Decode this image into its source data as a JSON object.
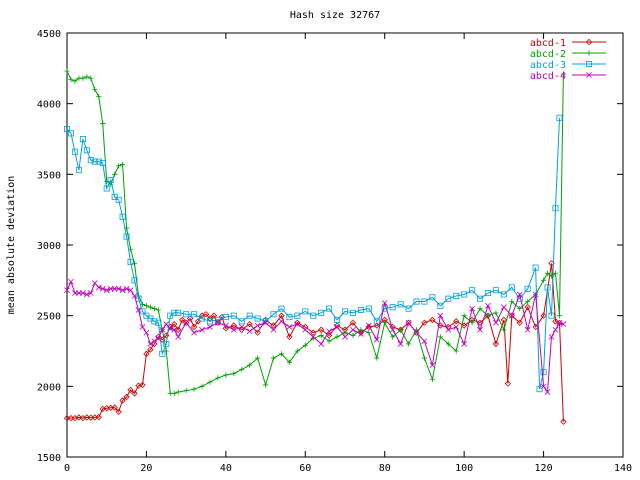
{
  "chart_data": {
    "type": "line",
    "title": "Hash size 32767",
    "xlabel": "",
    "ylabel": "mean absolute deviation",
    "xlim": [
      0,
      140
    ],
    "ylim": [
      1500,
      4500
    ],
    "xticks": [
      "0",
      "20",
      "40",
      "60",
      "80",
      "100",
      "120",
      "140"
    ],
    "yticks": [
      "1500",
      "2000",
      "2500",
      "3000",
      "3500",
      "4000",
      "4500"
    ],
    "legend_position": "top-right",
    "grid": false,
    "series": [
      {
        "name": "abcd-1",
        "color": "#d00000",
        "marker": "diamond",
        "points": [
          [
            0,
            1775
          ],
          [
            1,
            1775
          ],
          [
            2,
            1775
          ],
          [
            3,
            1780
          ],
          [
            4,
            1775
          ],
          [
            5,
            1780
          ],
          [
            6,
            1778
          ],
          [
            7,
            1780
          ],
          [
            8,
            1782
          ],
          [
            9,
            1840
          ],
          [
            10,
            1845
          ],
          [
            11,
            1848
          ],
          [
            12,
            1850
          ],
          [
            13,
            1820
          ],
          [
            14,
            1900
          ],
          [
            15,
            1925
          ],
          [
            16,
            1975
          ],
          [
            17,
            1950
          ],
          [
            18,
            2005
          ],
          [
            19,
            2010
          ],
          [
            20,
            2230
          ],
          [
            21,
            2260
          ],
          [
            22,
            2300
          ],
          [
            23,
            2350
          ],
          [
            24,
            2330
          ],
          [
            25,
            2360
          ],
          [
            26,
            2420
          ],
          [
            27,
            2440
          ],
          [
            28,
            2400
          ],
          [
            29,
            2470
          ],
          [
            30,
            2450
          ],
          [
            31,
            2480
          ],
          [
            32,
            2420
          ],
          [
            33,
            2460
          ],
          [
            34,
            2500
          ],
          [
            35,
            2510
          ],
          [
            36,
            2480
          ],
          [
            37,
            2500
          ],
          [
            38,
            2450
          ],
          [
            39,
            2490
          ],
          [
            40,
            2410
          ],
          [
            42,
            2430
          ],
          [
            44,
            2400
          ],
          [
            46,
            2440
          ],
          [
            48,
            2380
          ],
          [
            50,
            2470
          ],
          [
            52,
            2430
          ],
          [
            54,
            2500
          ],
          [
            56,
            2350
          ],
          [
            58,
            2450
          ],
          [
            60,
            2420
          ],
          [
            62,
            2380
          ],
          [
            64,
            2400
          ],
          [
            66,
            2360
          ],
          [
            68,
            2430
          ],
          [
            70,
            2400
          ],
          [
            72,
            2450
          ],
          [
            74,
            2380
          ],
          [
            76,
            2420
          ],
          [
            78,
            2430
          ],
          [
            80,
            2470
          ],
          [
            82,
            2420
          ],
          [
            84,
            2400
          ],
          [
            86,
            2450
          ],
          [
            88,
            2380
          ],
          [
            90,
            2450
          ],
          [
            92,
            2470
          ],
          [
            94,
            2430
          ],
          [
            96,
            2420
          ],
          [
            98,
            2460
          ],
          [
            100,
            2430
          ],
          [
            102,
            2470
          ],
          [
            104,
            2450
          ],
          [
            106,
            2500
          ],
          [
            108,
            2300
          ],
          [
            110,
            2470
          ],
          [
            111,
            2020
          ],
          [
            112,
            2500
          ],
          [
            114,
            2450
          ],
          [
            116,
            2560
          ],
          [
            118,
            2420
          ],
          [
            120,
            2500
          ],
          [
            122,
            2870
          ],
          [
            123,
            2460
          ],
          [
            124,
            2450
          ],
          [
            125,
            1750
          ]
        ]
      },
      {
        "name": "abcd-2",
        "color": "#00a000",
        "marker": "plus",
        "points": [
          [
            0,
            4230
          ],
          [
            1,
            4170
          ],
          [
            2,
            4160
          ],
          [
            3,
            4180
          ],
          [
            4,
            4180
          ],
          [
            5,
            4190
          ],
          [
            6,
            4180
          ],
          [
            7,
            4100
          ],
          [
            8,
            4050
          ],
          [
            9,
            3860
          ],
          [
            10,
            3450
          ],
          [
            11,
            3430
          ],
          [
            12,
            3500
          ],
          [
            13,
            3560
          ],
          [
            14,
            3570
          ],
          [
            15,
            3120
          ],
          [
            16,
            2970
          ],
          [
            17,
            2870
          ],
          [
            18,
            2640
          ],
          [
            19,
            2580
          ],
          [
            20,
            2570
          ],
          [
            21,
            2560
          ],
          [
            22,
            2550
          ],
          [
            23,
            2540
          ],
          [
            24,
            2400
          ],
          [
            25,
            2250
          ],
          [
            26,
            1950
          ],
          [
            27,
            1950
          ],
          [
            28,
            1960
          ],
          [
            30,
            1970
          ],
          [
            32,
            1980
          ],
          [
            34,
            2000
          ],
          [
            36,
            2030
          ],
          [
            38,
            2060
          ],
          [
            40,
            2080
          ],
          [
            42,
            2090
          ],
          [
            44,
            2120
          ],
          [
            46,
            2150
          ],
          [
            48,
            2200
          ],
          [
            50,
            2010
          ],
          [
            52,
            2200
          ],
          [
            54,
            2230
          ],
          [
            56,
            2170
          ],
          [
            58,
            2250
          ],
          [
            60,
            2290
          ],
          [
            62,
            2340
          ],
          [
            64,
            2360
          ],
          [
            66,
            2320
          ],
          [
            68,
            2350
          ],
          [
            70,
            2380
          ],
          [
            72,
            2360
          ],
          [
            74,
            2400
          ],
          [
            76,
            2380
          ],
          [
            78,
            2200
          ],
          [
            80,
            2450
          ],
          [
            82,
            2350
          ],
          [
            84,
            2400
          ],
          [
            86,
            2300
          ],
          [
            88,
            2400
          ],
          [
            90,
            2200
          ],
          [
            92,
            2050
          ],
          [
            94,
            2350
          ],
          [
            96,
            2300
          ],
          [
            98,
            2250
          ],
          [
            100,
            2500
          ],
          [
            102,
            2450
          ],
          [
            104,
            2550
          ],
          [
            106,
            2500
          ],
          [
            108,
            2520
          ],
          [
            110,
            2400
          ],
          [
            112,
            2600
          ],
          [
            114,
            2550
          ],
          [
            116,
            2600
          ],
          [
            118,
            2650
          ],
          [
            120,
            2750
          ],
          [
            121,
            2800
          ],
          [
            122,
            2780
          ],
          [
            123,
            2800
          ],
          [
            124,
            2500
          ],
          [
            125,
            4210
          ]
        ]
      },
      {
        "name": "abcd-3",
        "color": "#00a0e0",
        "marker": "square",
        "points": [
          [
            0,
            3820
          ],
          [
            1,
            3790
          ],
          [
            2,
            3660
          ],
          [
            3,
            3530
          ],
          [
            4,
            3750
          ],
          [
            5,
            3670
          ],
          [
            6,
            3600
          ],
          [
            7,
            3590
          ],
          [
            8,
            3590
          ],
          [
            9,
            3580
          ],
          [
            10,
            3400
          ],
          [
            11,
            3460
          ],
          [
            12,
            3340
          ],
          [
            13,
            3320
          ],
          [
            14,
            3200
          ],
          [
            15,
            3060
          ],
          [
            16,
            2880
          ],
          [
            17,
            2750
          ],
          [
            18,
            2620
          ],
          [
            19,
            2530
          ],
          [
            20,
            2500
          ],
          [
            21,
            2480
          ],
          [
            22,
            2460
          ],
          [
            23,
            2450
          ],
          [
            24,
            2230
          ],
          [
            25,
            2300
          ],
          [
            26,
            2500
          ],
          [
            27,
            2520
          ],
          [
            28,
            2520
          ],
          [
            30,
            2510
          ],
          [
            32,
            2510
          ],
          [
            34,
            2480
          ],
          [
            36,
            2460
          ],
          [
            38,
            2470
          ],
          [
            40,
            2490
          ],
          [
            42,
            2500
          ],
          [
            44,
            2460
          ],
          [
            46,
            2500
          ],
          [
            48,
            2480
          ],
          [
            50,
            2460
          ],
          [
            52,
            2510
          ],
          [
            54,
            2550
          ],
          [
            56,
            2490
          ],
          [
            58,
            2500
          ],
          [
            60,
            2530
          ],
          [
            62,
            2500
          ],
          [
            64,
            2520
          ],
          [
            66,
            2550
          ],
          [
            68,
            2470
          ],
          [
            70,
            2530
          ],
          [
            72,
            2520
          ],
          [
            74,
            2540
          ],
          [
            76,
            2550
          ],
          [
            78,
            2460
          ],
          [
            80,
            2550
          ],
          [
            82,
            2560
          ],
          [
            84,
            2580
          ],
          [
            86,
            2550
          ],
          [
            88,
            2600
          ],
          [
            90,
            2600
          ],
          [
            92,
            2630
          ],
          [
            94,
            2570
          ],
          [
            96,
            2620
          ],
          [
            98,
            2640
          ],
          [
            100,
            2650
          ],
          [
            102,
            2680
          ],
          [
            104,
            2620
          ],
          [
            106,
            2660
          ],
          [
            108,
            2680
          ],
          [
            110,
            2650
          ],
          [
            112,
            2700
          ],
          [
            114,
            2620
          ],
          [
            116,
            2690
          ],
          [
            118,
            2840
          ],
          [
            119,
            1980
          ],
          [
            120,
            2100
          ],
          [
            121,
            2700
          ],
          [
            122,
            2500
          ],
          [
            123,
            3260
          ],
          [
            124,
            3900
          ]
        ]
      },
      {
        "name": "abcd-4",
        "color": "#c000c0",
        "marker": "cross",
        "points": [
          [
            0,
            2680
          ],
          [
            1,
            2740
          ],
          [
            2,
            2660
          ],
          [
            3,
            2660
          ],
          [
            4,
            2660
          ],
          [
            5,
            2650
          ],
          [
            6,
            2660
          ],
          [
            7,
            2730
          ],
          [
            8,
            2700
          ],
          [
            9,
            2690
          ],
          [
            10,
            2680
          ],
          [
            11,
            2690
          ],
          [
            12,
            2690
          ],
          [
            13,
            2690
          ],
          [
            14,
            2680
          ],
          [
            15,
            2690
          ],
          [
            16,
            2680
          ],
          [
            17,
            2640
          ],
          [
            18,
            2540
          ],
          [
            19,
            2420
          ],
          [
            20,
            2380
          ],
          [
            21,
            2300
          ],
          [
            22,
            2320
          ],
          [
            23,
            2340
          ],
          [
            24,
            2400
          ],
          [
            25,
            2440
          ],
          [
            26,
            2410
          ],
          [
            27,
            2400
          ],
          [
            28,
            2350
          ],
          [
            30,
            2450
          ],
          [
            32,
            2380
          ],
          [
            34,
            2400
          ],
          [
            36,
            2420
          ],
          [
            38,
            2450
          ],
          [
            40,
            2430
          ],
          [
            42,
            2400
          ],
          [
            44,
            2420
          ],
          [
            46,
            2390
          ],
          [
            48,
            2430
          ],
          [
            50,
            2450
          ],
          [
            52,
            2400
          ],
          [
            54,
            2460
          ],
          [
            56,
            2420
          ],
          [
            58,
            2440
          ],
          [
            60,
            2400
          ],
          [
            62,
            2350
          ],
          [
            64,
            2300
          ],
          [
            66,
            2390
          ],
          [
            68,
            2420
          ],
          [
            70,
            2350
          ],
          [
            72,
            2400
          ],
          [
            74,
            2370
          ],
          [
            76,
            2430
          ],
          [
            78,
            2330
          ],
          [
            80,
            2590
          ],
          [
            82,
            2400
          ],
          [
            84,
            2300
          ],
          [
            86,
            2450
          ],
          [
            88,
            2380
          ],
          [
            90,
            2320
          ],
          [
            92,
            2150
          ],
          [
            94,
            2500
          ],
          [
            96,
            2400
          ],
          [
            98,
            2420
          ],
          [
            100,
            2300
          ],
          [
            102,
            2550
          ],
          [
            104,
            2400
          ],
          [
            106,
            2570
          ],
          [
            108,
            2450
          ],
          [
            110,
            2560
          ],
          [
            112,
            2500
          ],
          [
            114,
            2650
          ],
          [
            116,
            2400
          ],
          [
            118,
            2650
          ],
          [
            120,
            2000
          ],
          [
            121,
            1960
          ],
          [
            122,
            2350
          ],
          [
            123,
            2400
          ],
          [
            124,
            2450
          ],
          [
            125,
            2440
          ]
        ]
      }
    ]
  }
}
